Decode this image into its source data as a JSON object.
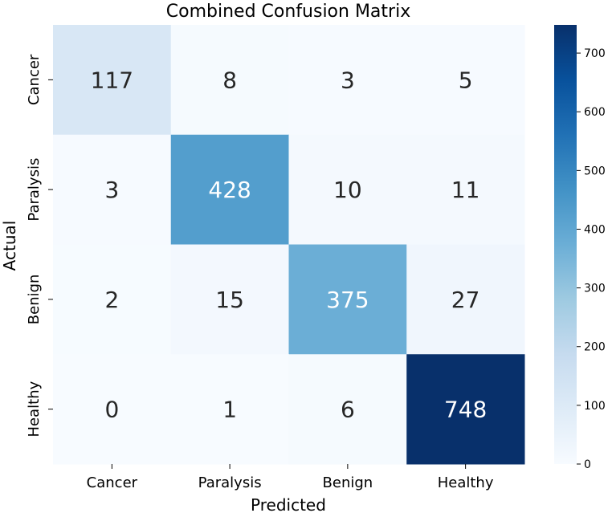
{
  "chart_data": {
    "type": "heatmap",
    "title": "Combined Confusion Matrix",
    "xlabel": "Predicted",
    "ylabel": "Actual",
    "x_categories": [
      "Cancer",
      "Paralysis",
      "Benign",
      "Healthy"
    ],
    "y_categories": [
      "Cancer",
      "Paralysis",
      "Benign",
      "Healthy"
    ],
    "values": [
      [
        117,
        8,
        3,
        5
      ],
      [
        3,
        428,
        10,
        11
      ],
      [
        2,
        15,
        375,
        27
      ],
      [
        0,
        1,
        6,
        748
      ]
    ],
    "colorbar": {
      "colormap": "Blues",
      "range": [
        0,
        748
      ],
      "ticks": [
        0,
        100,
        200,
        300,
        400,
        500,
        600,
        700
      ]
    },
    "grid": false,
    "legend": "none"
  }
}
